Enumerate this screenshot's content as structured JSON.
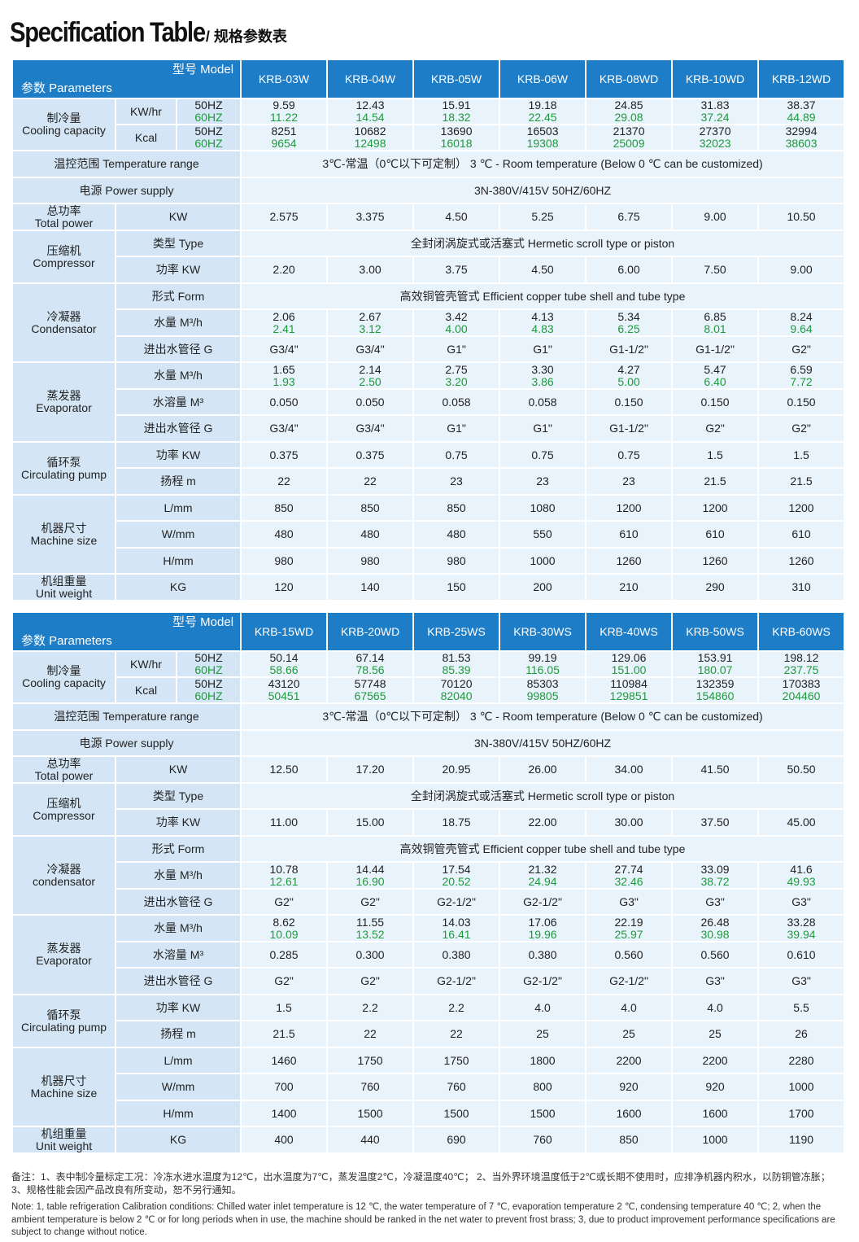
{
  "title": {
    "en": "Specification Table",
    "cn": "/ 规格参数表"
  },
  "labels": {
    "model": "型号 Model",
    "parameters": "参数 Parameters",
    "cooling": [
      "制冷量",
      "Cooling capacity"
    ],
    "kwhr": "KW/hr",
    "kcal": "Kcal",
    "hz50": "50HZ",
    "hz60": "60HZ",
    "temp_range": "温控范围 Temperature range",
    "power_supply": "电源 Power supply",
    "total_power": [
      "总功率",
      "Total power"
    ],
    "kw": "KW",
    "compressor": [
      "压缩机",
      "Compressor"
    ],
    "type": "类型 Type",
    "power_kw": "功率 KW",
    "condenser": [
      "冷凝器",
      "Condensator"
    ],
    "condenser2": [
      "冷凝器",
      "condensator"
    ],
    "form": "形式 Form",
    "water_flow": "水量 M³/h",
    "pipe": "进出水管径 G",
    "evaporator": [
      "蒸发器",
      "Evaporator"
    ],
    "water_vol": "水溶量 M³",
    "pump": [
      "循环泵",
      "Circulating pump"
    ],
    "head": "扬程 m",
    "size": [
      "机器尺寸",
      "Machine size"
    ],
    "lmm": "L/mm",
    "wmm": "W/mm",
    "hmm": "H/mm",
    "weight": [
      "机组重量",
      "Unit weight"
    ],
    "kg": "KG"
  },
  "common": {
    "temp_range": "3℃-常温（0℃以下可定制） 3 ℃ - Room temperature (Below 0 ℃ can be customized)",
    "power_supply": "3N-380V/415V 50HZ/60HZ",
    "compressor_type": "全封闭涡旋式或活塞式 Hermetic scroll type or piston",
    "condenser_form": "高效铜管壳管式 Efficient copper tube shell and tube type"
  },
  "tables": [
    {
      "models": [
        "KRB-03W",
        "KRB-04W",
        "KRB-05W",
        "KRB-06W",
        "KRB-08WD",
        "KRB-10WD",
        "KRB-12WD"
      ],
      "kwhr_50": [
        "9.59",
        "12.43",
        "15.91",
        "19.18",
        "24.85",
        "31.83",
        "38.37"
      ],
      "kwhr_60": [
        "11.22",
        "14.54",
        "18.32",
        "22.45",
        "29.08",
        "37.24",
        "44.89"
      ],
      "kcal_50": [
        "8251",
        "10682",
        "13690",
        "16503",
        "21370",
        "27370",
        "32994"
      ],
      "kcal_60": [
        "9654",
        "12498",
        "16018",
        "19308",
        "25009",
        "32023",
        "38603"
      ],
      "total_power": [
        "2.575",
        "3.375",
        "4.50",
        "5.25",
        "6.75",
        "9.00",
        "10.50"
      ],
      "comp_power": [
        "2.20",
        "3.00",
        "3.75",
        "4.50",
        "6.00",
        "7.50",
        "9.00"
      ],
      "cond_flow_50": [
        "2.06",
        "2.67",
        "3.42",
        "4.13",
        "5.34",
        "6.85",
        "8.24"
      ],
      "cond_flow_60": [
        "2.41",
        "3.12",
        "4.00",
        "4.83",
        "6.25",
        "8.01",
        "9.64"
      ],
      "cond_pipe": [
        "G3/4\"",
        "G3/4\"",
        "G1\"",
        "G1\"",
        "G1-1/2\"",
        "G1-1/2\"",
        "G2\""
      ],
      "evap_flow_50": [
        "1.65",
        "2.14",
        "2.75",
        "3.30",
        "4.27",
        "5.47",
        "6.59"
      ],
      "evap_flow_60": [
        "1.93",
        "2.50",
        "3.20",
        "3.86",
        "5.00",
        "6.40",
        "7.72"
      ],
      "evap_vol": [
        "0.050",
        "0.050",
        "0.058",
        "0.058",
        "0.150",
        "0.150",
        "0.150"
      ],
      "evap_pipe": [
        "G3/4\"",
        "G3/4\"",
        "G1\"",
        "G1\"",
        "G1-1/2\"",
        "G2\"",
        "G2\""
      ],
      "pump_power": [
        "0.375",
        "0.375",
        "0.75",
        "0.75",
        "0.75",
        "1.5",
        "1.5"
      ],
      "pump_head": [
        "22",
        "22",
        "23",
        "23",
        "23",
        "21.5",
        "21.5"
      ],
      "size_l": [
        "850",
        "850",
        "850",
        "1080",
        "1200",
        "1200",
        "1200"
      ],
      "size_w": [
        "480",
        "480",
        "480",
        "550",
        "610",
        "610",
        "610"
      ],
      "size_h": [
        "980",
        "980",
        "980",
        "1000",
        "1260",
        "1260",
        "1260"
      ],
      "weight": [
        "120",
        "140",
        "150",
        "200",
        "210",
        "290",
        "310"
      ]
    },
    {
      "models": [
        "KRB-15WD",
        "KRB-20WD",
        "KRB-25WS",
        "KRB-30WS",
        "KRB-40WS",
        "KRB-50WS",
        "KRB-60WS"
      ],
      "kwhr_50": [
        "50.14",
        "67.14",
        "81.53",
        "99.19",
        "129.06",
        "153.91",
        "198.12"
      ],
      "kwhr_60": [
        "58.66",
        "78.56",
        "85.39",
        "116.05",
        "151.00",
        "180.07",
        "237.75"
      ],
      "kcal_50": [
        "43120",
        "57748",
        "70120",
        "85303",
        "110984",
        "132359",
        "170383"
      ],
      "kcal_60": [
        "50451",
        "67565",
        "82040",
        "99805",
        "129851",
        "154860",
        "204460"
      ],
      "total_power": [
        "12.50",
        "17.20",
        "20.95",
        "26.00",
        "34.00",
        "41.50",
        "50.50"
      ],
      "comp_power": [
        "11.00",
        "15.00",
        "18.75",
        "22.00",
        "30.00",
        "37.50",
        "45.00"
      ],
      "cond_flow_50": [
        "10.78",
        "14.44",
        "17.54",
        "21.32",
        "27.74",
        "33.09",
        "41.6"
      ],
      "cond_flow_60": [
        "12.61",
        "16.90",
        "20.52",
        "24.94",
        "32.46",
        "38.72",
        "49.93"
      ],
      "cond_pipe": [
        "G2\"",
        "G2\"",
        "G2-1/2\"",
        "G2-1/2\"",
        "G3\"",
        "G3\"",
        "G3\""
      ],
      "evap_flow_50": [
        "8.62",
        "11.55",
        "14.03",
        "17.06",
        "22.19",
        "26.48",
        "33.28"
      ],
      "evap_flow_60": [
        "10.09",
        "13.52",
        "16.41",
        "19.96",
        "25.97",
        "30.98",
        "39.94"
      ],
      "evap_vol": [
        "0.285",
        "0.300",
        "0.380",
        "0.380",
        "0.560",
        "0.560",
        "0.610"
      ],
      "evap_pipe": [
        "G2\"",
        "G2\"",
        "G2-1/2\"",
        "G2-1/2\"",
        "G2-1/2\"",
        "G3\"",
        "G3\""
      ],
      "pump_power": [
        "1.5",
        "2.2",
        "2.2",
        "4.0",
        "4.0",
        "4.0",
        "5.5"
      ],
      "pump_head": [
        "21.5",
        "22",
        "22",
        "25",
        "25",
        "25",
        "26"
      ],
      "size_l": [
        "1460",
        "1750",
        "1750",
        "1800",
        "2200",
        "2200",
        "2280"
      ],
      "size_w": [
        "700",
        "760",
        "760",
        "800",
        "920",
        "920",
        "1000"
      ],
      "size_h": [
        "1400",
        "1500",
        "1500",
        "1500",
        "1600",
        "1600",
        "1700"
      ],
      "weight": [
        "400",
        "440",
        "690",
        "760",
        "850",
        "1000",
        "1190"
      ]
    }
  ],
  "notes": {
    "cn": "备注：1、表中制冷量标定工况：冷冻水进水温度为12℃，出水温度为7℃，蒸发温度2℃，冷凝温度40℃；  2、当外界环境温度低于2℃或长期不使用时，应排净机器内积水，以防铜管冻胀；  3、规格性能会因产品改良有所变动，恕不另行通知。",
    "en": "Note: 1, table refrigeration Calibration conditions: Chilled water inlet temperature is 12 ℃, the water temperature of 7 ℃, evaporation temperature 2 ℃, condensing temperature 40 ℃; 2, when the ambient temperature is below 2 ℃ or for long periods when in use, the machine should be ranked in the net water to prevent frost brass; 3, due to product improvement performance specifications are subject to change without notice."
  }
}
